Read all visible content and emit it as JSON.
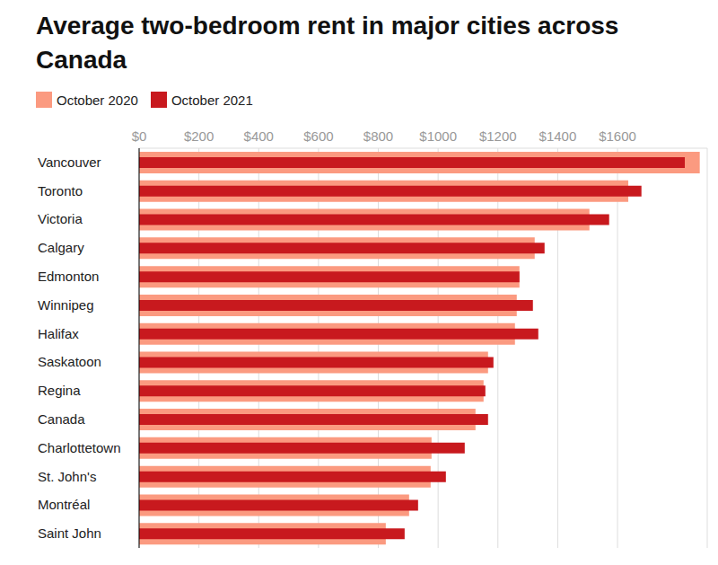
{
  "chart_data": {
    "type": "bar",
    "title": "Average two-bedroom rent in major cities across Canada",
    "orientation": "horizontal",
    "legend": "top",
    "grid": true,
    "categories": [
      "Vancouver",
      "Toronto",
      "Victoria",
      "Calgary",
      "Edmonton",
      "Winnipeg",
      "Halifax",
      "Saskatoon",
      "Regina",
      "Canada",
      "Charlottetown",
      "St. John's",
      "Montréal",
      "Saint John"
    ],
    "series": [
      {
        "name": "October 2020",
        "color": "#fb9a80",
        "values": [
          1875,
          1636,
          1506,
          1323,
          1272,
          1263,
          1257,
          1167,
          1152,
          1125,
          978,
          975,
          903,
          825
        ]
      },
      {
        "name": "October 2021",
        "color": "#c8191e",
        "values": [
          1825,
          1680,
          1572,
          1356,
          1272,
          1317,
          1335,
          1185,
          1158,
          1167,
          1089,
          1026,
          933,
          888
        ]
      }
    ],
    "xlim": [
      0,
      1900
    ],
    "xticks": [
      {
        "value": 0,
        "label": "$0"
      },
      {
        "value": 200,
        "label": "$200"
      },
      {
        "value": 400,
        "label": "$400"
      },
      {
        "value": 600,
        "label": "$600"
      },
      {
        "value": 800,
        "label": "$800"
      },
      {
        "value": 1000,
        "label": "$1000"
      },
      {
        "value": 1200,
        "label": "$1200"
      },
      {
        "value": 1400,
        "label": "$1400"
      },
      {
        "value": 1600,
        "label": "$1600"
      }
    ]
  }
}
